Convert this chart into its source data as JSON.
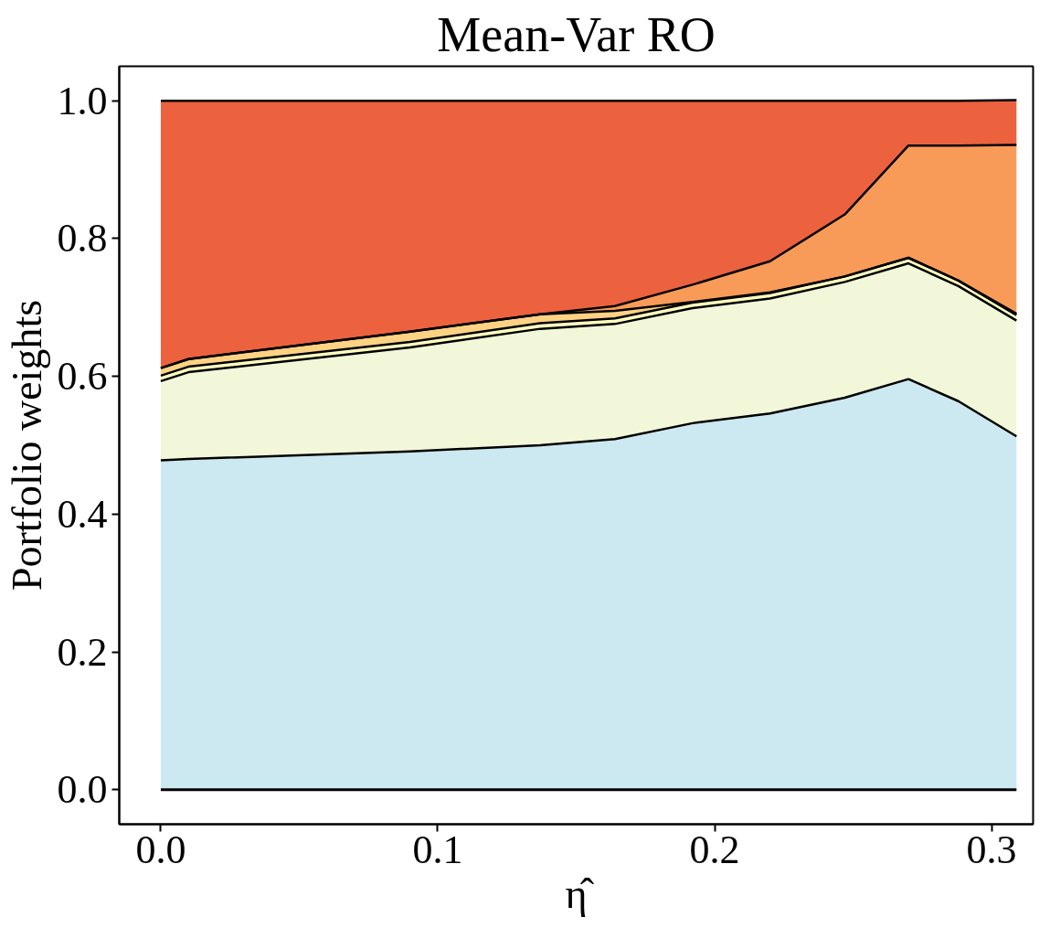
{
  "chart_data": {
    "type": "area",
    "stacked": true,
    "title": "Mean-Var RO",
    "xlabel": "η̂",
    "ylabel": "Portfolio weights",
    "x": [
      0,
      0.01,
      0.09,
      0.137,
      0.164,
      0.192,
      0.22,
      0.247,
      0.27,
      0.288,
      0.309
    ],
    "series": [
      {
        "color": "#cce8f1",
        "values": [
          0.478,
          0.48,
          0.491,
          0.5,
          0.509,
          0.532,
          0.546,
          0.569,
          0.596,
          0.564,
          0.513
        ]
      },
      {
        "color": "#f1f7d8",
        "values": [
          0.115,
          0.126,
          0.151,
          0.169,
          0.167,
          0.167,
          0.167,
          0.168,
          0.168,
          0.167,
          0.168
        ]
      },
      {
        "color": "#fffebf",
        "values": [
          0.008,
          0.008,
          0.008,
          0.008,
          0.008,
          0.008,
          0.008,
          0.008,
          0.008,
          0.008,
          0.008
        ]
      },
      {
        "color": "#fdd283",
        "values": [
          0.011,
          0.011,
          0.015,
          0.013,
          0.011,
          0.001,
          0.001,
          0,
          0,
          0,
          0.002
        ]
      },
      {
        "color": "#f99b58",
        "values": [
          0,
          0,
          0,
          0,
          0.007,
          0.025,
          0.045,
          0.09,
          0.163,
          0.196,
          0.245
        ]
      },
      {
        "color": "#ec623e",
        "values": [
          0.388,
          0.375,
          0.335,
          0.31,
          0.298,
          0.267,
          0.233,
          0.165,
          0.065,
          0.065,
          0.065
        ]
      }
    ],
    "xlim": [
      -0.015,
      0.315
    ],
    "ylim": [
      -0.05,
      1.05
    ],
    "xticks": [
      {
        "value": 0,
        "label": "0.0"
      },
      0.1,
      0.2,
      0.3
    ],
    "yticks": [
      {
        "value": 0,
        "label": "0.0"
      },
      0.2,
      0.4,
      0.6,
      0.8,
      {
        "value": 1,
        "label": "1.0"
      }
    ],
    "grid": false
  }
}
